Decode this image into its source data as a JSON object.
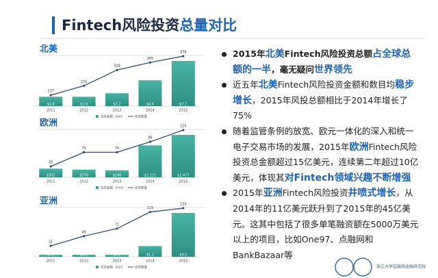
{
  "title": [
    {
      "text": "Fintech风险投资"
    },
    {
      "text": "总量对比",
      "emphasis": true
    }
  ],
  "chart_data": [
    {
      "type": "combo",
      "title": "北美",
      "categories": [
        "2011",
        "2012",
        "2013",
        "2014",
        "2015"
      ],
      "series": [
        {
          "name": "投资金额（$bil）",
          "type": "bar",
          "color": "#3aa394",
          "values": [
            1.6,
            1.6,
            2.2,
            4.4,
            7.7
          ],
          "value_labels": [
            "$1.6",
            "$1.6",
            "$2.2",
            "$4.4",
            "$7.7"
          ]
        },
        {
          "name": "投资数量",
          "type": "line",
          "color": "#2e4a7a",
          "values": [
            237,
            271,
            328,
            355,
            378
          ]
        }
      ]
    },
    {
      "type": "combo",
      "title": "欧洲",
      "categories": [
        "2011",
        "2012",
        "2013",
        "2014",
        "2015"
      ],
      "series": [
        {
          "name": "投资金额（$mil）",
          "type": "bar",
          "color": "#3aa394",
          "values": [
            302,
            270,
            246,
            1111,
            1477
          ],
          "value_labels": [
            "$302",
            "$270",
            "$246",
            "$1,111",
            "$1,477"
          ]
        },
        {
          "name": "投资数量",
          "type": "line",
          "color": "#2e4a7a",
          "values": [
            35,
            70,
            70,
            96,
            125
          ]
        }
      ]
    },
    {
      "type": "combo",
      "title": "亚洲",
      "categories": [
        "2011",
        "2012",
        "2013",
        "2014",
        "2015"
      ],
      "series": [
        {
          "name": "投资金额（$bil）",
          "type": "bar",
          "color": "#3aa394",
          "values": [
            0.2,
            0.2,
            0.2,
            1.1,
            4.5
          ],
          "value_labels": [
            "$0.2",
            "$0.2",
            "$0.2",
            "$1.1",
            "$4.5"
          ]
        },
        {
          "name": "投资数量",
          "type": "line",
          "color": "#2e4a7a",
          "values": [
            21,
            49,
            71,
            119,
            130
          ]
        }
      ]
    }
  ],
  "bullets": [
    [
      {
        "text": "2015年"
      },
      {
        "text": "北美",
        "emphasis": true
      },
      {
        "text": "Fintech风险投资总额"
      },
      {
        "text": "占全球总额的一半",
        "emphasis": true
      },
      {
        "text": "，毫无疑问"
      },
      {
        "text": "世界领先",
        "emphasis": true
      }
    ],
    [
      {
        "text": "近五年"
      },
      {
        "text": "北美",
        "emphasis": true
      },
      {
        "text": "Fintech风险投资金额和数目均"
      },
      {
        "text": "稳步增长",
        "emphasis": true
      },
      {
        "text": "，2015年风投总额相比于2014年增长了75%"
      }
    ],
    [
      {
        "text": "随着监管条例的放宽、欧元一体化的深入和统一电子交易市场的发展，2015年"
      },
      {
        "text": "欧洲",
        "emphasis": true
      },
      {
        "text": "Fintech风险投资总金额超过15亿美元，连续第二年超过10亿美元，体现其"
      },
      {
        "text": "对Fintech领域兴趣不断增强",
        "emphasis": true
      }
    ],
    [
      {
        "text": "2015年"
      },
      {
        "text": "亚洲",
        "emphasis": true
      },
      {
        "text": "Fintech风险投资"
      },
      {
        "text": "井喷式增长",
        "emphasis": true
      },
      {
        "text": "，从2014年的11亿美元跃升到了2015年的45亿美元。这其中包括了很多单笔融资额在5000万美元以上的项目，比如One97、点融网和BankBazaar等"
      }
    ]
  ],
  "logo_text": "浙江大学互联网金融研究院"
}
